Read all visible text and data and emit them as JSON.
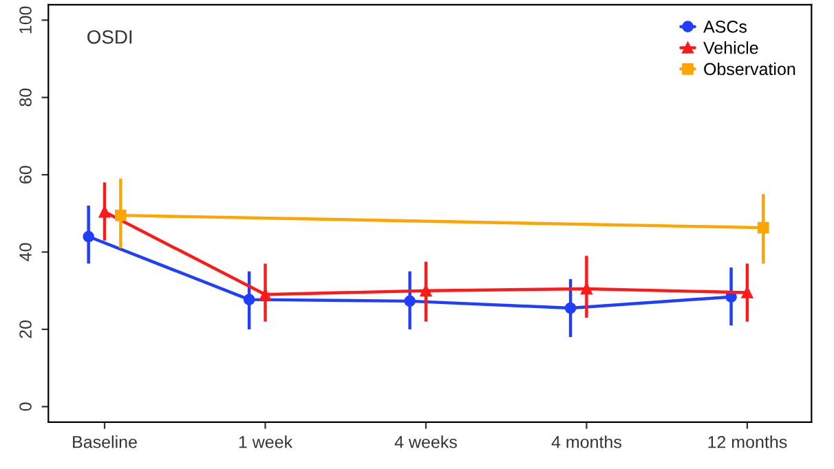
{
  "chart_data": {
    "type": "line",
    "annotations": [
      "OSDI"
    ],
    "categories": [
      "Baseline",
      "1 week",
      "4 weeks",
      "4 months",
      "12 months"
    ],
    "ylim": [
      -4,
      104
    ],
    "yticks": [
      0,
      20,
      40,
      60,
      80,
      100
    ],
    "grid": false,
    "legend": "top right",
    "line_style": "solid",
    "series": [
      {
        "name": "ASCs",
        "color": "#1f3fff",
        "marker": "circle",
        "values": [
          44,
          27.7,
          27.3,
          25.5,
          28.4
        ],
        "errors": [
          [
            37,
            52
          ],
          [
            20,
            35
          ],
          [
            20,
            35
          ],
          [
            18,
            33
          ],
          [
            21,
            36
          ]
        ]
      },
      {
        "name": "Vehicle",
        "color": "#ff1a1a",
        "marker": "triangle",
        "values": [
          50.4,
          29,
          30,
          30.5,
          29.5
        ],
        "errors": [
          [
            43,
            58
          ],
          [
            22,
            37
          ],
          [
            22,
            37.5
          ],
          [
            23,
            39
          ],
          [
            22,
            37
          ]
        ]
      },
      {
        "name": "Observation",
        "color": "#ffa500",
        "marker": "square",
        "values": [
          49.5,
          null,
          null,
          null,
          46.3
        ],
        "errors": [
          [
            41,
            59
          ],
          null,
          null,
          null,
          [
            37,
            55
          ]
        ]
      }
    ]
  }
}
